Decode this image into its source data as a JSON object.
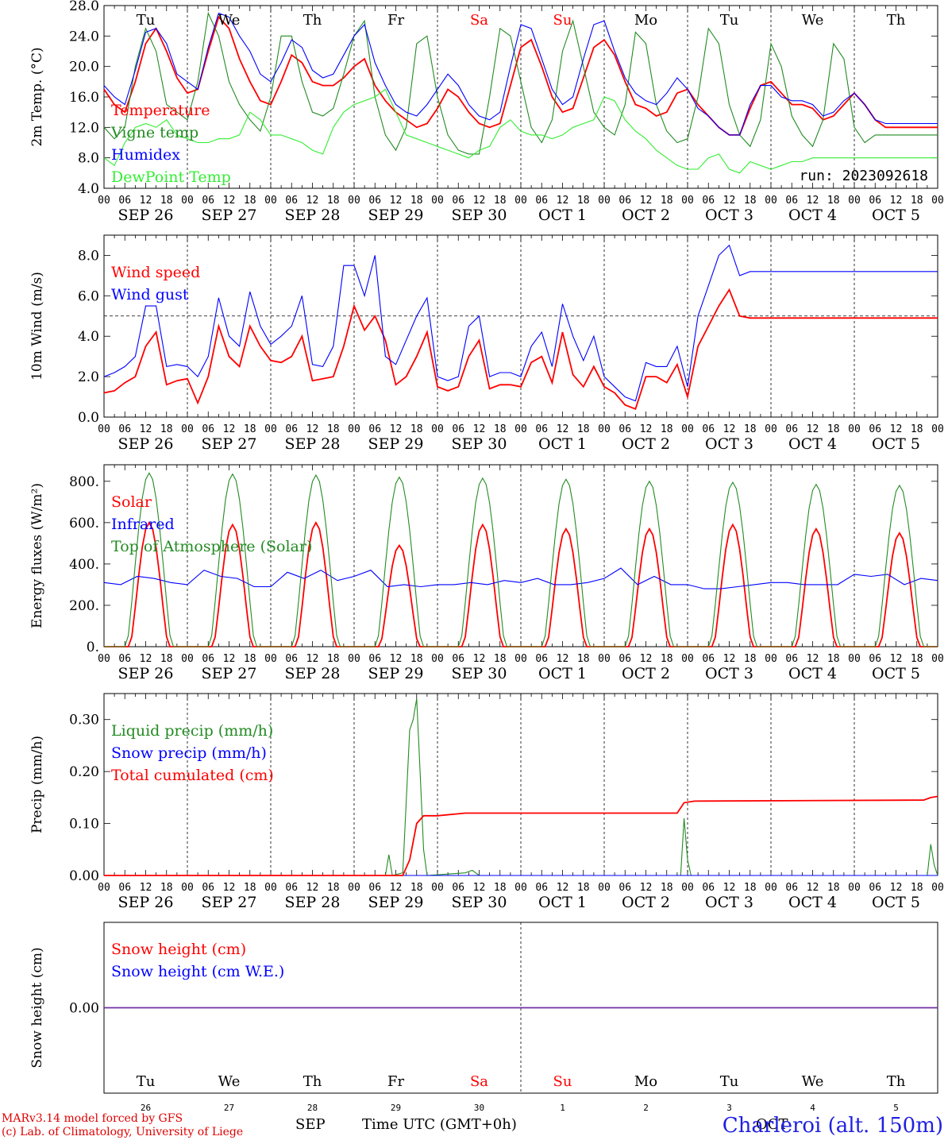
{
  "run_label": "run: 2023092618",
  "hour_ticks": [
    "00",
    "06",
    "12",
    "18"
  ],
  "days": [
    {
      "label": "SEP 26",
      "dow": "Tu",
      "num": "26",
      "weekend": false
    },
    {
      "label": "SEP 27",
      "dow": "We",
      "num": "27",
      "weekend": false
    },
    {
      "label": "SEP 28",
      "dow": "Th",
      "num": "28",
      "weekend": false
    },
    {
      "label": "SEP 29",
      "dow": "Fr",
      "num": "29",
      "weekend": false
    },
    {
      "label": "SEP 30",
      "dow": "Sa",
      "num": "30",
      "weekend": true
    },
    {
      "label": "OCT  1",
      "dow": "Su",
      "num": "1",
      "weekend": true
    },
    {
      "label": "OCT  2",
      "dow": "Mo",
      "num": "2",
      "weekend": false
    },
    {
      "label": "OCT  3",
      "dow": "Tu",
      "num": "3",
      "weekend": false
    },
    {
      "label": "OCT  4",
      "dow": "We",
      "num": "4",
      "weekend": false
    },
    {
      "label": "OCT  5",
      "dow": "Th",
      "num": "5",
      "weekend": false
    }
  ],
  "last_hour_tick": "00",
  "colors": {
    "red": "#ff0000",
    "green": "#228b22",
    "blue": "#0000ff",
    "lightgreen": "#33ee33",
    "purple": "#7030a0",
    "axis": "#000000"
  },
  "footer": {
    "model": "MARv3.14 model forced by GFS",
    "lab": "(c) Lab. of Climatology, University of Liege",
    "time_label": "Time UTC (GMT+0h)",
    "month1": "SEP",
    "month2": "OCT",
    "station": "Charleroi (alt. 150m)"
  },
  "chart_data": [
    {
      "type": "line",
      "ylabel": "2m Temp. (°C)",
      "ylim": [
        4,
        28
      ],
      "yticks": [
        "4.0",
        "8.0",
        "12.0",
        "16.0",
        "20.0",
        "24.0",
        "28.0"
      ],
      "x_hours": [
        0,
        3,
        6,
        9,
        12,
        15,
        18,
        21,
        24,
        27,
        30,
        33,
        36,
        39,
        42,
        45,
        48,
        51,
        54,
        57,
        60,
        63,
        66,
        69,
        72,
        75,
        78,
        81,
        84,
        87,
        90,
        93,
        96,
        99,
        102,
        105,
        108,
        111,
        114,
        117,
        120,
        123,
        126,
        129,
        132,
        135,
        138,
        141,
        144,
        147,
        150,
        153,
        156,
        159,
        162,
        165,
        168,
        171,
        174,
        177,
        180,
        183,
        186,
        189,
        192,
        195,
        198,
        201,
        204,
        207,
        210,
        213,
        216,
        219,
        222,
        225,
        228,
        231,
        234,
        237,
        240
      ],
      "series": [
        {
          "name": "Temperature",
          "color": "red",
          "values": [
            17.0,
            15.0,
            14.0,
            18.0,
            23.0,
            25.0,
            22.0,
            18.5,
            16.5,
            17.0,
            22.0,
            26.5,
            25.0,
            21.0,
            18.0,
            15.5,
            15.0,
            18.0,
            21.5,
            20.5,
            18.0,
            17.5,
            17.5,
            18.5,
            20.0,
            21.0,
            17.5,
            15.5,
            14.0,
            13.0,
            12.0,
            12.5,
            14.5,
            17.0,
            16.0,
            14.0,
            12.5,
            12.0,
            12.5,
            17.5,
            22.5,
            23.5,
            20.0,
            16.0,
            14.0,
            14.5,
            18.5,
            22.5,
            23.5,
            21.5,
            18.0,
            15.0,
            14.5,
            13.5,
            14.0,
            16.5,
            17.0,
            15.0,
            13.5,
            12.0,
            11.0,
            11.0,
            14.5,
            17.5,
            18.0,
            16.5,
            15.0,
            15.0,
            14.5,
            13.0,
            13.5,
            15.0,
            16.5,
            15.0,
            13.0,
            12.0,
            12.0,
            12.0,
            12.0,
            12.0,
            12.0
          ]
        },
        {
          "name": "Vigne temp",
          "color": "green",
          "values": [
            12.0,
            10.5,
            12.0,
            20.0,
            25.0,
            22.0,
            15.0,
            14.0,
            13.0,
            18.0,
            27.0,
            24.0,
            18.0,
            15.0,
            13.0,
            11.5,
            16.0,
            24.0,
            24.0,
            18.0,
            14.0,
            13.5,
            14.5,
            19.0,
            24.0,
            26.0,
            16.0,
            11.0,
            9.0,
            12.0,
            23.0,
            24.0,
            16.0,
            11.0,
            9.0,
            8.5,
            8.5,
            16.0,
            25.0,
            24.0,
            18.0,
            12.0,
            10.0,
            13.0,
            22.0,
            26.0,
            20.0,
            14.0,
            12.0,
            11.0,
            15.0,
            24.5,
            23.0,
            15.0,
            11.5,
            10.0,
            10.5,
            16.0,
            25.0,
            23.0,
            15.0,
            11.0,
            9.5,
            13.0,
            23.0,
            20.0,
            13.5,
            11.0,
            9.5,
            13.0,
            23.0,
            21.0,
            12.0,
            10.0,
            11.0,
            11.0,
            11.0,
            11.0,
            11.0,
            11.0,
            11.0
          ]
        },
        {
          "name": "Humidex",
          "color": "blue",
          "values": [
            17.5,
            16.0,
            15.0,
            19.5,
            24.5,
            25.0,
            23.0,
            19.0,
            18.0,
            17.0,
            22.5,
            27.0,
            26.5,
            24.0,
            22.0,
            19.0,
            18.0,
            20.5,
            23.5,
            22.5,
            19.5,
            18.5,
            19.0,
            21.5,
            24.0,
            25.5,
            20.5,
            17.5,
            15.0,
            14.0,
            13.5,
            15.0,
            17.0,
            19.0,
            17.5,
            15.0,
            13.5,
            13.0,
            14.0,
            20.0,
            25.5,
            25.0,
            21.0,
            17.0,
            15.0,
            16.0,
            21.0,
            25.5,
            26.0,
            22.0,
            18.5,
            16.5,
            15.5,
            15.0,
            16.5,
            18.5,
            17.0,
            14.5,
            13.5,
            12.0,
            11.0,
            11.0,
            15.0,
            17.5,
            17.5,
            16.0,
            15.5,
            15.5,
            15.0,
            13.5,
            14.0,
            15.5,
            16.5,
            15.0,
            13.0,
            12.5,
            12.5,
            12.5,
            12.5,
            12.5,
            12.5
          ]
        },
        {
          "name": "DewPoint Temp",
          "color": "lightgreen",
          "values": [
            8.0,
            7.0,
            10.0,
            12.0,
            12.5,
            12.0,
            13.0,
            11.0,
            10.5,
            10.0,
            10.0,
            10.5,
            10.5,
            11.0,
            14.0,
            13.0,
            11.0,
            11.0,
            10.5,
            10.0,
            9.0,
            8.5,
            12.0,
            14.0,
            15.0,
            15.5,
            16.0,
            17.0,
            14.0,
            11.0,
            10.5,
            10.0,
            9.5,
            9.0,
            8.5,
            8.0,
            9.0,
            9.5,
            12.0,
            13.0,
            11.5,
            11.0,
            11.0,
            10.5,
            11.0,
            12.0,
            12.5,
            13.0,
            16.0,
            15.5,
            13.0,
            11.5,
            10.5,
            9.0,
            8.0,
            7.0,
            6.5,
            6.5,
            8.0,
            8.5,
            6.5,
            6.0,
            7.5,
            7.0,
            6.5,
            7.0,
            7.5,
            7.5,
            8.0,
            8.0,
            8.0,
            8.0,
            8.0,
            8.0,
            8.0,
            8.0,
            8.0,
            8.0,
            8.0,
            8.0,
            8.0
          ]
        }
      ]
    },
    {
      "type": "line",
      "ylabel": "10m Wind (m/s)",
      "ylim": [
        0,
        9
      ],
      "yticks": [
        "0.0",
        "2.0",
        "4.0",
        "6.0",
        "8.0"
      ],
      "ref_line": 5.0,
      "x_hours": [
        0,
        3,
        6,
        9,
        12,
        15,
        18,
        21,
        24,
        27,
        30,
        33,
        36,
        39,
        42,
        45,
        48,
        51,
        54,
        57,
        60,
        63,
        66,
        69,
        72,
        75,
        78,
        81,
        84,
        87,
        90,
        93,
        96,
        99,
        102,
        105,
        108,
        111,
        114,
        117,
        120,
        123,
        126,
        129,
        132,
        135,
        138,
        141,
        144,
        147,
        150,
        153,
        156,
        159,
        162,
        165,
        168,
        171,
        174,
        177,
        180,
        183,
        186,
        189,
        192,
        195,
        198,
        201,
        204,
        207,
        210,
        213,
        216,
        219,
        222,
        225,
        228,
        231,
        234,
        237,
        240
      ],
      "series": [
        {
          "name": "Wind speed",
          "color": "red",
          "values": [
            1.2,
            1.3,
            1.7,
            2.0,
            3.5,
            4.2,
            1.6,
            1.8,
            1.9,
            0.7,
            2.0,
            4.5,
            3.0,
            2.5,
            4.5,
            3.5,
            2.8,
            2.7,
            3.0,
            4.0,
            1.8,
            1.9,
            2.0,
            3.5,
            5.5,
            4.3,
            5.0,
            3.8,
            1.6,
            2.0,
            3.0,
            4.2,
            1.5,
            1.3,
            1.5,
            3.0,
            3.8,
            1.4,
            1.6,
            1.6,
            1.5,
            2.7,
            3.0,
            1.7,
            4.2,
            2.1,
            1.5,
            2.5,
            1.5,
            1.2,
            0.6,
            0.4,
            2.0,
            2.0,
            1.7,
            2.6,
            1.0,
            3.5,
            4.5,
            5.5,
            6.3,
            5.0,
            4.9,
            4.9,
            4.9,
            4.9,
            4.9,
            4.9,
            4.9,
            4.9,
            4.9,
            4.9,
            4.9,
            4.9,
            4.9,
            4.9,
            4.9,
            4.9,
            4.9,
            4.9,
            4.9
          ]
        },
        {
          "name": "Wind gust",
          "color": "blue",
          "values": [
            2.0,
            2.2,
            2.5,
            3.0,
            5.5,
            5.5,
            2.5,
            2.6,
            2.5,
            2.0,
            3.0,
            5.9,
            4.0,
            3.5,
            6.2,
            4.5,
            3.6,
            4.0,
            4.5,
            6.0,
            2.6,
            2.5,
            3.5,
            7.5,
            7.5,
            6.0,
            8.0,
            3.0,
            2.6,
            3.8,
            5.0,
            5.9,
            2.0,
            1.8,
            2.0,
            4.5,
            5.0,
            2.0,
            2.2,
            2.2,
            2.0,
            3.5,
            4.2,
            2.5,
            5.6,
            4.0,
            2.8,
            4.0,
            2.0,
            1.5,
            1.0,
            0.8,
            2.7,
            2.5,
            2.5,
            3.5,
            1.5,
            5.0,
            6.5,
            8.0,
            8.5,
            7.0,
            7.2,
            7.2,
            7.2,
            7.2,
            7.2,
            7.2,
            7.2,
            7.2,
            7.2,
            7.2,
            7.2,
            7.2,
            7.2,
            7.2,
            7.2,
            7.2,
            7.2,
            7.2,
            7.2
          ]
        }
      ]
    },
    {
      "type": "line",
      "ylabel": "Energy fluxes (W/m²)",
      "ylim": [
        0,
        880
      ],
      "yticks": [
        "0.",
        "200.",
        "400.",
        "600.",
        "800."
      ],
      "series": [
        {
          "name": "Solar",
          "color": "red",
          "kind": "diurnal",
          "peaks": [
            600,
            590,
            600,
            490,
            590,
            570,
            570,
            590,
            570,
            550
          ]
        },
        {
          "name": "Infrared",
          "color": "blue",
          "kind": "flat",
          "values": [
            310,
            300,
            340,
            330,
            310,
            300,
            370,
            340,
            330,
            290,
            290,
            360,
            330,
            370,
            320,
            340,
            370,
            290,
            300,
            290,
            300,
            300,
            310,
            300,
            320,
            310,
            330,
            300,
            300,
            310,
            330,
            380,
            300,
            340,
            300,
            300,
            280,
            280,
            290,
            300,
            310,
            310,
            300,
            300,
            300,
            350,
            340,
            350,
            300,
            330,
            320
          ]
        },
        {
          "name": "Top of Atmosphere (Solar)",
          "color": "green",
          "kind": "diurnal",
          "peaks": [
            840,
            835,
            830,
            820,
            815,
            810,
            800,
            795,
            785,
            780
          ]
        }
      ]
    },
    {
      "type": "line",
      "ylabel": "Precip (mm/h)",
      "ylim": [
        0,
        0.35
      ],
      "yticks": [
        "0.00",
        "0.10",
        "0.20",
        "0.30"
      ],
      "series": [
        {
          "name": "Liquid precip (mm/h)",
          "color": "green",
          "points": [
            [
              81,
              0
            ],
            [
              82,
              0.04
            ],
            [
              83,
              0
            ],
            [
              86,
              0.005
            ],
            [
              88,
              0.28
            ],
            [
              89,
              0.3
            ],
            [
              90,
              0.34
            ],
            [
              91,
              0.2
            ],
            [
              92,
              0.05
            ],
            [
              93,
              0
            ],
            [
              104,
              0.005
            ],
            [
              106,
              0.01
            ],
            [
              108,
              0
            ],
            [
              166,
              0
            ],
            [
              167,
              0.11
            ],
            [
              168,
              0.03
            ],
            [
              169,
              0
            ],
            [
              237,
              0
            ],
            [
              238,
              0.06
            ],
            [
              239,
              0.02
            ],
            [
              240,
              0
            ]
          ]
        },
        {
          "name": "Snow precip (mm/h)",
          "color": "blue",
          "points": [
            [
              0,
              0
            ],
            [
              240,
              0
            ]
          ]
        },
        {
          "name": "Total cumulated (cm)",
          "color": "red",
          "points": [
            [
              0,
              0
            ],
            [
              86,
              0
            ],
            [
              88,
              0.03
            ],
            [
              90,
              0.1
            ],
            [
              92,
              0.115
            ],
            [
              96,
              0.115
            ],
            [
              104,
              0.12
            ],
            [
              165,
              0.12
            ],
            [
              167,
              0.14
            ],
            [
              170,
              0.143
            ],
            [
              236,
              0.145
            ],
            [
              238,
              0.15
            ],
            [
              240,
              0.152
            ]
          ]
        }
      ]
    },
    {
      "type": "line",
      "ylabel": "Snow height (cm)",
      "ylim": [
        -1,
        1
      ],
      "yticks": [
        "0.00"
      ],
      "series": [
        {
          "name": "Snow height (cm)",
          "color": "red",
          "values": [
            0,
            0
          ]
        },
        {
          "name": "Snow height (cm W.E.)",
          "color": "blue",
          "values": [
            0,
            0
          ]
        }
      ]
    }
  ]
}
